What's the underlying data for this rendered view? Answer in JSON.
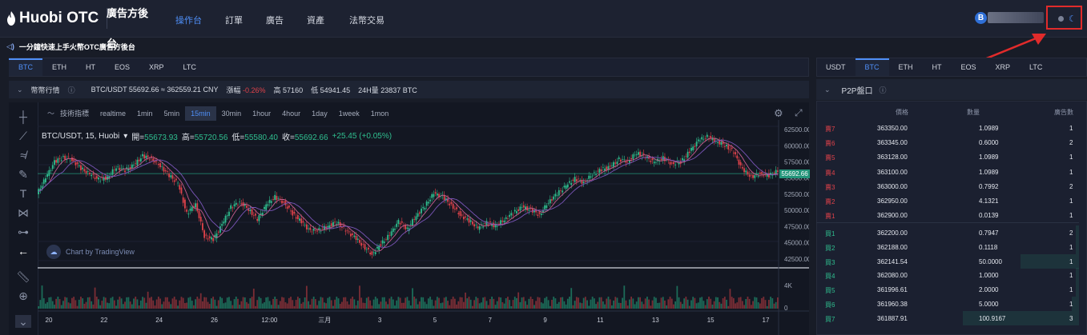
{
  "header": {
    "logo_text": "Huobi OTC",
    "side_title": "廣告方後台",
    "nav": [
      {
        "label": "操作台",
        "active": true
      },
      {
        "label": "訂單",
        "active": false
      },
      {
        "label": "廣告",
        "active": false
      },
      {
        "label": "資產",
        "active": false
      },
      {
        "label": "法幣交易",
        "active": false
      }
    ],
    "avatar_letter": "B"
  },
  "notice": "一分鐘快速上手火幣OTC廣告方後台",
  "market_tabs": [
    "BTC",
    "ETH",
    "HT",
    "EOS",
    "XRP",
    "LTC"
  ],
  "ticker": {
    "label": "幣幣行情",
    "pair_price": "BTC/USDT 55692.66 ≈ 362559.21 CNY",
    "change_label": "漲幅",
    "change_value": "-0.26%",
    "high_label": "高",
    "high_value": "57160",
    "low_label": "低",
    "low_value": "54941.45",
    "volume_label": "24H量",
    "volume_value": "23837 BTC"
  },
  "chart_toolbar": {
    "indicator_label": "技術指標",
    "intervals": [
      "realtime",
      "1min",
      "5min",
      "15min",
      "30min",
      "1hour",
      "4hour",
      "1day",
      "1week",
      "1mon"
    ],
    "active_interval": "15min"
  },
  "chart_legend": {
    "symbol": "BTC/USDT, 15, Huobi",
    "open_label": "開=",
    "open": "55673.93",
    "high_label": "高=",
    "high": "55720.56",
    "low_label": "低=",
    "low": "55580.40",
    "close_label": "收=",
    "close": "55692.66",
    "change": "+25.45 (+0.05%)"
  },
  "watermark": "Chart by TradingView",
  "chart_data": {
    "type": "line",
    "y_ticks": [
      "62500.00",
      "60000.00",
      "57500.00",
      "55000.00",
      "52500.00",
      "50000.00",
      "47500.00",
      "45000.00",
      "42500.00"
    ],
    "ylim": [
      41500,
      63000
    ],
    "x_ticks": [
      "20",
      "22",
      "24",
      "26",
      "12:00",
      "三月",
      "3",
      "5",
      "7",
      "9",
      "11",
      "13",
      "15",
      "17"
    ],
    "last_price_tag": "55692.66",
    "volume_tick": "4K",
    "volume_zero": "0",
    "series": [
      {
        "values": [
          52500,
          55000,
          57500,
          58200,
          57800,
          56500,
          55600,
          54800,
          55100,
          56700,
          56200,
          57000,
          58400,
          58000,
          56900,
          55400,
          54200,
          49500,
          51000,
          46000,
          45500,
          47800,
          50500,
          51300,
          50200,
          48600,
          50800,
          52100,
          51200,
          49500,
          48200,
          46800,
          47000,
          47600,
          48200,
          46900,
          45900,
          44500,
          43200,
          44800,
          46200,
          48300,
          47100,
          49200,
          50700,
          52600,
          52100,
          50800,
          49300,
          48400,
          47300,
          48100,
          47600,
          48600,
          49600,
          50500,
          50100,
          49300,
          51300,
          52600,
          53800,
          54900,
          54300,
          55600,
          56300,
          56700,
          57900,
          57600,
          58900,
          58300,
          57400,
          58100,
          57200,
          57500,
          59100,
          60800,
          61400,
          60700,
          60100,
          59000,
          56300,
          55200,
          55700,
          55400,
          56100
        ]
      }
    ]
  },
  "orderbook": {
    "quote_tabs": [
      "USDT",
      "BTC",
      "ETH",
      "HT",
      "EOS",
      "XRP",
      "LTC"
    ],
    "active_tab": "BTC",
    "title": "P2P盤口",
    "col_price": "價格",
    "col_qty": "數量",
    "col_count": "廣告數",
    "sells": [
      {
        "label": "賣7",
        "price": "363350.00",
        "qty": "1.0989",
        "count": "1"
      },
      {
        "label": "賣6",
        "price": "363345.00",
        "qty": "0.6000",
        "count": "2"
      },
      {
        "label": "賣5",
        "price": "363128.00",
        "qty": "1.0989",
        "count": "1"
      },
      {
        "label": "賣4",
        "price": "363100.00",
        "qty": "1.0989",
        "count": "1"
      },
      {
        "label": "賣3",
        "price": "363000.00",
        "qty": "0.7992",
        "count": "2"
      },
      {
        "label": "賣2",
        "price": "362950.00",
        "qty": "4.1321",
        "count": "1"
      },
      {
        "label": "賣1",
        "price": "362900.00",
        "qty": "0.0139",
        "count": "1"
      }
    ],
    "buys": [
      {
        "label": "買1",
        "price": "362200.00",
        "qty": "0.7947",
        "count": "2",
        "depth": 0.02
      },
      {
        "label": "買2",
        "price": "362188.00",
        "qty": "0.1118",
        "count": "1",
        "depth": 0.01
      },
      {
        "label": "買3",
        "price": "362141.54",
        "qty": "50.0000",
        "count": "1",
        "depth": 0.5
      },
      {
        "label": "買4",
        "price": "362080.00",
        "qty": "1.0000",
        "count": "1",
        "depth": 0.02
      },
      {
        "label": "買5",
        "price": "361996.61",
        "qty": "2.0000",
        "count": "1",
        "depth": 0.03
      },
      {
        "label": "買6",
        "price": "361960.38",
        "qty": "5.0000",
        "count": "1",
        "depth": 0.06
      },
      {
        "label": "買7",
        "price": "361887.91",
        "qty": "100.9167",
        "count": "3",
        "depth": 1.0
      }
    ]
  },
  "colors": {
    "accent": "#4f8ff7",
    "up": "#2fbf8f",
    "down": "#e0424a",
    "highlight": "#e12b2b"
  }
}
